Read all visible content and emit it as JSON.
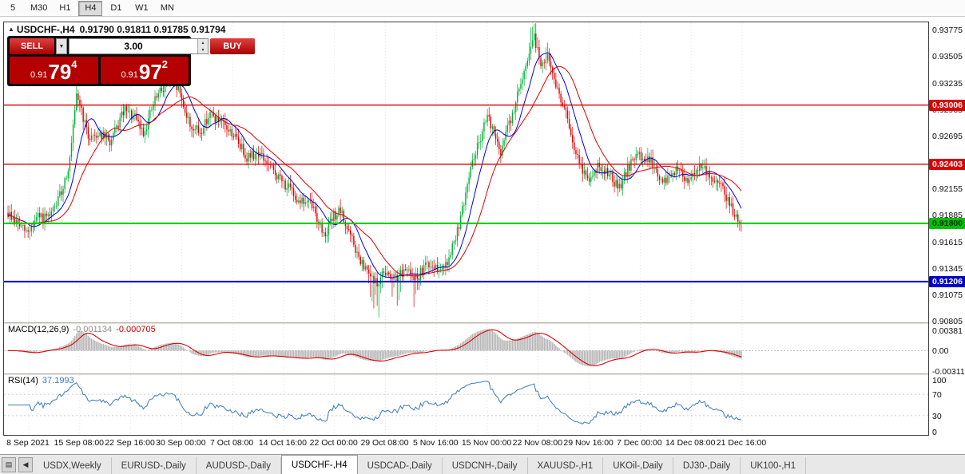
{
  "toolbar": {
    "timeframes": [
      {
        "label": "5",
        "active": false
      },
      {
        "label": "M30",
        "active": false
      },
      {
        "label": "H1",
        "active": false
      },
      {
        "label": "H4",
        "active": true
      },
      {
        "label": "D1",
        "active": false
      },
      {
        "label": "W1",
        "active": false
      },
      {
        "label": "MN",
        "active": false
      }
    ]
  },
  "chart": {
    "collapse_arrow": "▲",
    "symbol_title": "USDCHF-,H4",
    "ohlc": "0.91790 0.91811 0.91785 0.91794"
  },
  "trade_panel": {
    "sell_label": "SELL",
    "buy_label": "BUY",
    "volume": "3.00",
    "combo_arrow": "▼",
    "spin_up": "▲",
    "spin_down": "▼",
    "bid_small": "0.91",
    "bid_big": "79",
    "bid_sup": "4",
    "ask_small": "0.91",
    "ask_big": "97",
    "ask_sup": "2"
  },
  "indicators": {
    "macd": {
      "label": "MACD(12,26,9)",
      "value_main": "-0.001134",
      "value_signal": "-0.000705",
      "axis": [
        "0.00381",
        "0.00",
        "-0.00311"
      ]
    },
    "rsi": {
      "label": "RSI(14)",
      "value": "37.1993",
      "axis": [
        "100",
        "70",
        "30",
        "0"
      ]
    }
  },
  "tabs": {
    "nav_buttons": [
      {
        "name": "tab-list-button",
        "glyph": "▤"
      },
      {
        "name": "tab-scroll-left-button",
        "glyph": "◀"
      }
    ],
    "items": [
      {
        "label": "USDX,Weekly",
        "active": false
      },
      {
        "label": "EURUSD-,Daily",
        "active": false
      },
      {
        "label": "AUDUSD-,Daily",
        "active": false
      },
      {
        "label": "USDCHF-,H4",
        "active": true
      },
      {
        "label": "USDCAD-,Daily",
        "active": false
      },
      {
        "label": "USDCNH-,Daily",
        "active": false
      },
      {
        "label": "XAUUSD-,H1",
        "active": false
      },
      {
        "label": "UKOil-,Daily",
        "active": false
      },
      {
        "label": "DJ30-,Daily",
        "active": false
      },
      {
        "label": "UK100-,H1",
        "active": false
      }
    ]
  },
  "chart_data": {
    "type": "candlestick",
    "title": "USDCHF-,H4",
    "ohlc_display": {
      "open": "0.91790",
      "high": "0.91811",
      "low": "0.91785",
      "close": "0.91794"
    },
    "ylim": [
      0.9079,
      0.9385
    ],
    "y_ticks": [
      "0.93775",
      "0.93505",
      "0.93235",
      "0.92965",
      "0.92695",
      "0.92425",
      "0.92155",
      "0.91885",
      "0.91615",
      "0.91345",
      "0.91075",
      "0.90805"
    ],
    "x_labels": [
      "8 Sep 2021",
      "15 Sep 08:00",
      "22 Sep 16:00",
      "30 Sep 00:00",
      "7 Oct 08:00",
      "14 Oct 16:00",
      "22 Oct 00:00",
      "29 Oct 08:00",
      "5 Nov 16:00",
      "15 Nov 00:00",
      "22 Nov 08:00",
      "29 Nov 16:00",
      "7 Dec 00:00",
      "14 Dec 08:00",
      "21 Dec 16:00"
    ],
    "h_lines": [
      {
        "price": 0.93006,
        "label": "0.93006",
        "line_color": "#dd0000",
        "line_width": 1.4,
        "badge_bg": "#dd0000",
        "badge_fg": "#ffffff"
      },
      {
        "price": 0.92403,
        "label": "0.92403",
        "line_color": "#dd0000",
        "line_width": 1.4,
        "badge_bg": "#dd0000",
        "badge_fg": "#ffffff"
      },
      {
        "price": 0.918,
        "label": "0.91800",
        "line_color": "#00cc00",
        "line_width": 2,
        "badge_bg": "#00c000",
        "badge_fg": "#002d00"
      },
      {
        "price": 0.91206,
        "label": "0.91206",
        "line_color": "#0000dd",
        "line_width": 2,
        "badge_bg": "#0000cc",
        "badge_fg": "#ffffff"
      }
    ],
    "price_path": [
      [
        0.0,
        0.919
      ],
      [
        0.015,
        0.9178
      ],
      [
        0.026,
        0.917
      ],
      [
        0.04,
        0.9186
      ],
      [
        0.056,
        0.9184
      ],
      [
        0.072,
        0.921
      ],
      [
        0.084,
        0.9242
      ],
      [
        0.094,
        0.9312
      ],
      [
        0.1,
        0.9296
      ],
      [
        0.109,
        0.9268
      ],
      [
        0.125,
        0.9272
      ],
      [
        0.14,
        0.9262
      ],
      [
        0.158,
        0.9295
      ],
      [
        0.172,
        0.9288
      ],
      [
        0.185,
        0.9272
      ],
      [
        0.2,
        0.9305
      ],
      [
        0.218,
        0.9326
      ],
      [
        0.232,
        0.9318
      ],
      [
        0.248,
        0.928
      ],
      [
        0.262,
        0.9272
      ],
      [
        0.275,
        0.9292
      ],
      [
        0.29,
        0.9282
      ],
      [
        0.308,
        0.927
      ],
      [
        0.326,
        0.9248
      ],
      [
        0.342,
        0.9252
      ],
      [
        0.358,
        0.9236
      ],
      [
        0.375,
        0.9222
      ],
      [
        0.395,
        0.9205
      ],
      [
        0.415,
        0.9198
      ],
      [
        0.431,
        0.9168
      ],
      [
        0.445,
        0.9188
      ],
      [
        0.453,
        0.9192
      ],
      [
        0.468,
        0.9165
      ],
      [
        0.48,
        0.914
      ],
      [
        0.502,
        0.9118
      ],
      [
        0.515,
        0.9132
      ],
      [
        0.528,
        0.9122
      ],
      [
        0.545,
        0.9134
      ],
      [
        0.557,
        0.9124
      ],
      [
        0.572,
        0.914
      ],
      [
        0.585,
        0.9134
      ],
      [
        0.6,
        0.9142
      ],
      [
        0.617,
        0.9184
      ],
      [
        0.633,
        0.9242
      ],
      [
        0.654,
        0.929
      ],
      [
        0.671,
        0.9252
      ],
      [
        0.692,
        0.9302
      ],
      [
        0.705,
        0.934
      ],
      [
        0.717,
        0.9372
      ],
      [
        0.727,
        0.9342
      ],
      [
        0.736,
        0.9356
      ],
      [
        0.748,
        0.9318
      ],
      [
        0.758,
        0.93
      ],
      [
        0.774,
        0.925
      ],
      [
        0.79,
        0.9224
      ],
      [
        0.806,
        0.9238
      ],
      [
        0.817,
        0.9234
      ],
      [
        0.834,
        0.9215
      ],
      [
        0.848,
        0.924
      ],
      [
        0.861,
        0.925
      ],
      [
        0.877,
        0.9243
      ],
      [
        0.893,
        0.922
      ],
      [
        0.91,
        0.9235
      ],
      [
        0.926,
        0.9224
      ],
      [
        0.942,
        0.924
      ],
      [
        0.959,
        0.9228
      ],
      [
        0.975,
        0.9216
      ],
      [
        0.986,
        0.9196
      ],
      [
        1.0,
        0.91794
      ]
    ],
    "macd_ylim": [
      -0.0035,
      0.0041
    ],
    "rsi_levels": [
      70,
      30
    ],
    "colors": {
      "up": "#00ad35",
      "down": "#db0000",
      "ma_fast": "#0000e6",
      "ma_slow": "#e00000",
      "macd_hist": "#b8b8b8",
      "macd_signal": "#e00000",
      "rsi_line": "#3b7bbf",
      "grid": "#e3e3e3"
    },
    "synthesis": {
      "bars": 440,
      "noise": 0.00055,
      "seed": 9,
      "region": [
        4,
        924
      ]
    }
  }
}
